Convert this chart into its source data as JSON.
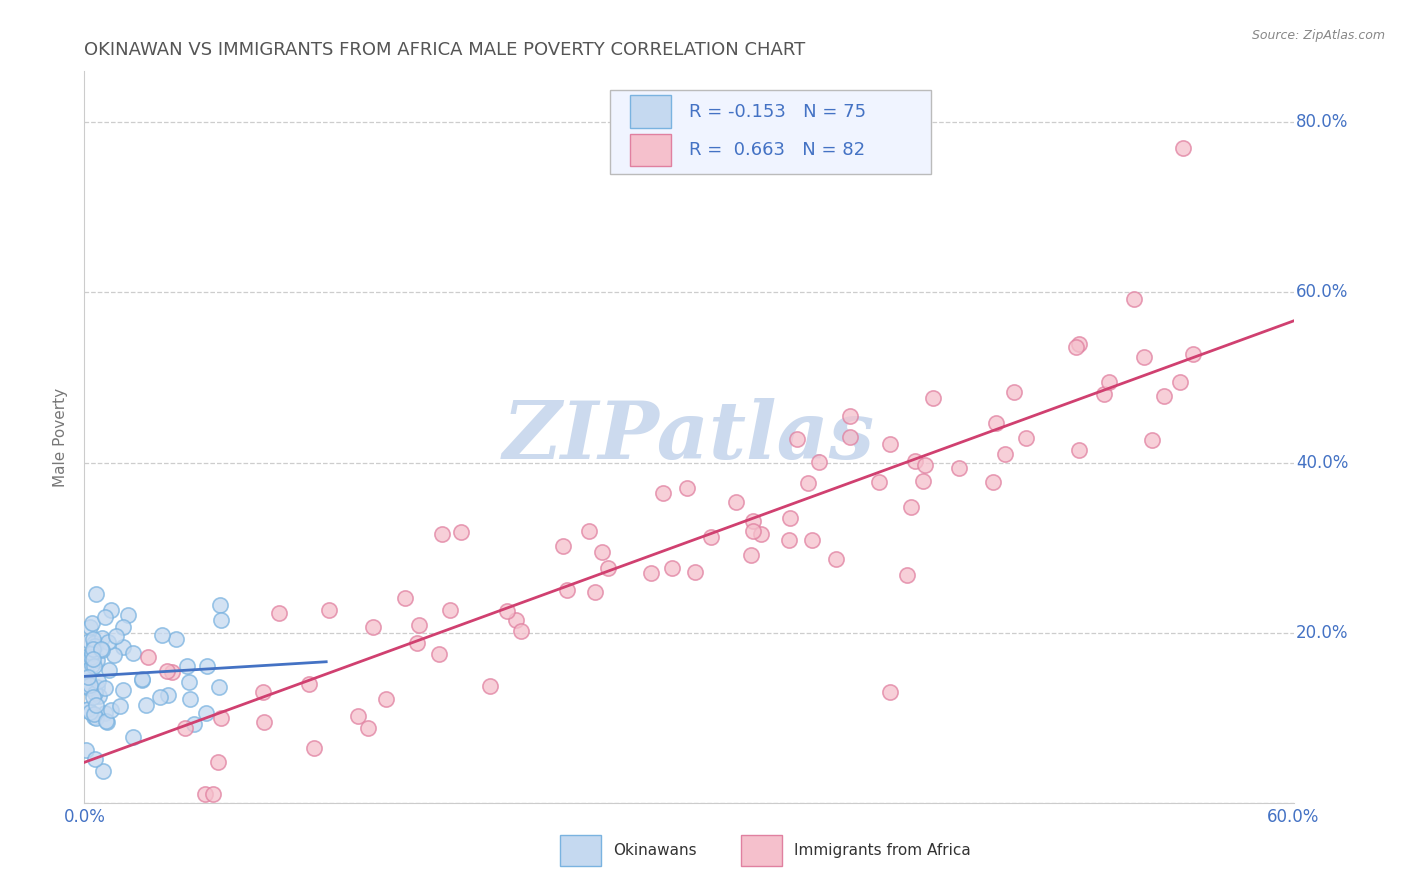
{
  "title": "OKINAWAN VS IMMIGRANTS FROM AFRICA MALE POVERTY CORRELATION CHART",
  "source_text": "Source: ZipAtlas.com",
  "ylabel": "Male Poverty",
  "xlim": [
    0.0,
    0.6
  ],
  "ylim": [
    0.0,
    0.86
  ],
  "title_color": "#555555",
  "title_fontsize": 13,
  "axis_label_color": "#777777",
  "tick_label_color": "#4472c4",
  "background_color": "#ffffff",
  "grid_color": "#c8c8c8",
  "watermark_text": "ZIPatlas",
  "watermark_color": "#ccdaee",
  "series1_name": "Okinawans",
  "series1_edge_color": "#7ab3e0",
  "series1_face_color": "#c5d9f0",
  "series1_R": -0.153,
  "series1_N": 75,
  "series1_line_color": "#4472c4",
  "series2_name": "Immigrants from Africa",
  "series2_edge_color": "#e080a0",
  "series2_face_color": "#f5c0cc",
  "series2_R": 0.663,
  "series2_N": 82,
  "series2_line_color": "#d04070",
  "legend_face_color": "#f0f4ff",
  "legend_edge_color": "#bbbbbb",
  "source_color": "#888888"
}
